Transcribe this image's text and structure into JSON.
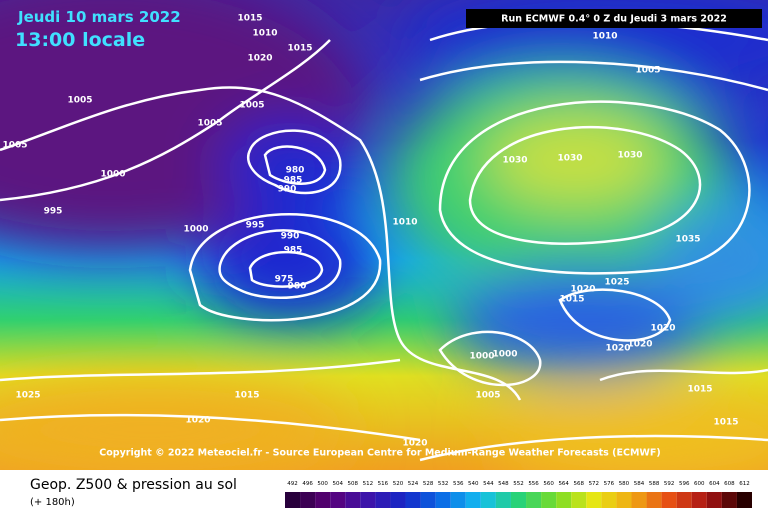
{
  "header": {
    "date": "Jeudi 10 mars 2022",
    "time": "13:00 locale",
    "run": "Run ECMWF 0.4° 0 Z du Jeudi 3 mars 2022"
  },
  "map": {
    "isobar_labels": [
      1015,
      1010,
      1015,
      1020,
      1005,
      1005,
      1005,
      1005,
      980,
      985,
      990,
      1000,
      995,
      1000,
      995,
      990,
      985,
      975,
      980,
      1010,
      1010,
      1005,
      1030,
      1030,
      1030,
      1035,
      1025,
      1020,
      1015,
      1020,
      1020,
      1020,
      1000,
      1000,
      1005,
      1015,
      1015,
      1025,
      1015,
      1020,
      1020
    ],
    "copyright": "Copyright © 2022 Meteociel.fr - Source European Centre for Medium-Range Weather Forecasts (ECMWF)"
  },
  "legend": {
    "title": "Geop. Z500 & pression au sol",
    "lead": "(+ 180h)",
    "scale": [
      492,
      496,
      500,
      504,
      508,
      512,
      516,
      520,
      524,
      528,
      532,
      536,
      540,
      544,
      548,
      552,
      556,
      560,
      564,
      568,
      572,
      576,
      580,
      584,
      588,
      592,
      596,
      600,
      604,
      608,
      612
    ]
  }
}
